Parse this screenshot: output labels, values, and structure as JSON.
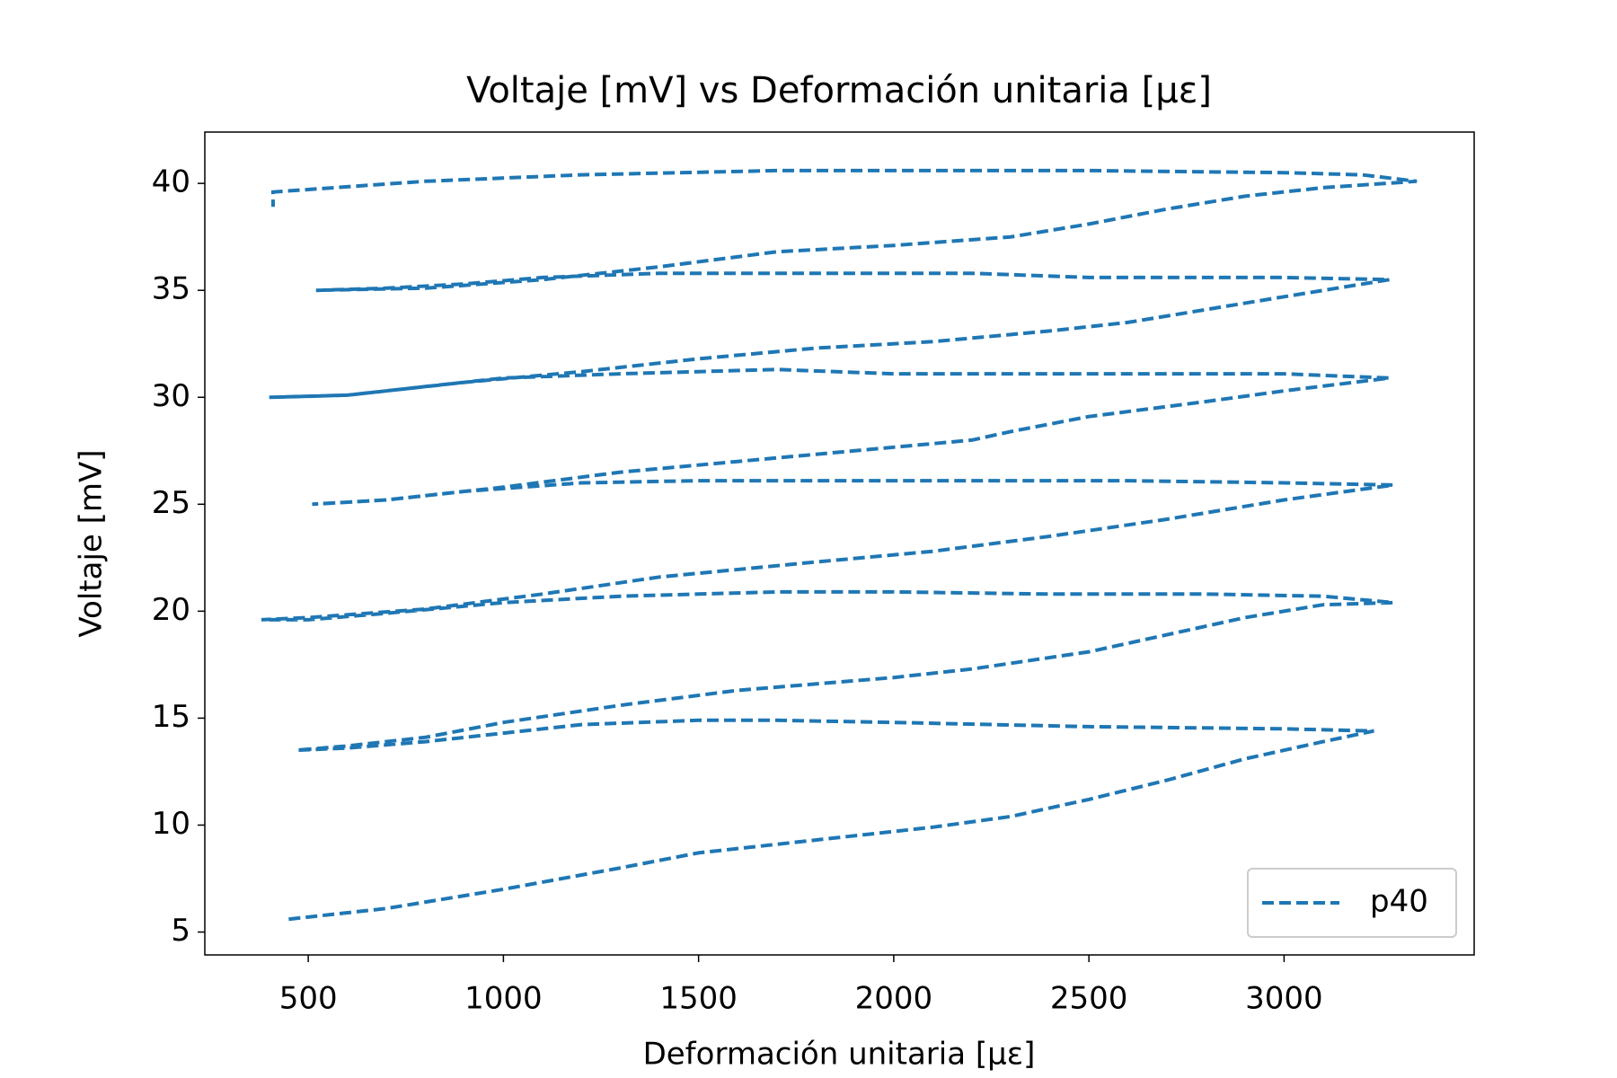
{
  "chart_data": {
    "type": "line",
    "title": "Voltaje [mV] vs Deformación unitaria [με]",
    "xlabel": "Deformación unitaria [με]",
    "ylabel": "Voltaje [mV]",
    "xlim": [
      235,
      3487
    ],
    "ylim": [
      3.93,
      42.4
    ],
    "xticks": [
      500,
      1000,
      1500,
      2000,
      2500,
      3000
    ],
    "yticks": [
      5,
      10,
      15,
      20,
      25,
      30,
      35,
      40
    ],
    "grid": false,
    "legend": "lower right",
    "dashed": true,
    "series": [
      {
        "name": "p40",
        "color": "#1f77b4",
        "x": [
          450,
          700,
          1000,
          1300,
          1500,
          1800,
          2100,
          2300,
          2500,
          2700,
          2900,
          3100,
          3230,
          3000,
          2500,
          2000,
          1700,
          1500,
          1200,
          1000,
          800,
          600,
          470,
          600,
          800,
          1000,
          1300,
          1600,
          2000,
          2200,
          2500,
          2700,
          2900,
          3100,
          3280,
          3100,
          2800,
          2400,
          2000,
          1700,
          1300,
          1000,
          700,
          500,
          380,
          500,
          800,
          1100,
          1400,
          1800,
          2100,
          2400,
          2700,
          3000,
          3280,
          3000,
          2600,
          2200,
          1800,
          1500,
          1200,
          900,
          700,
          510,
          700,
          1000,
          1300,
          1600,
          1900,
          2200,
          2300,
          2500,
          2800,
          3000,
          3270,
          3000,
          2500,
          2000,
          1700,
          1300,
          1000,
          800,
          600,
          400,
          600,
          900,
          1200,
          1500,
          1800,
          2100,
          2400,
          2600,
          2800,
          3000,
          3270,
          3000,
          2500,
          2200,
          1800,
          1400,
          1100,
          900,
          700,
          520,
          800,
          1100,
          1400,
          1700,
          2000,
          2300,
          2500,
          2700,
          2900,
          3100,
          3340,
          3200,
          3000,
          2500,
          2200,
          1700,
          1200,
          800,
          410,
          410
        ],
        "values": [
          5.6,
          6.1,
          7.0,
          8.0,
          8.7,
          9.3,
          9.9,
          10.4,
          11.2,
          12.1,
          13.1,
          13.9,
          14.4,
          14.5,
          14.6,
          14.8,
          14.9,
          14.9,
          14.7,
          14.3,
          13.9,
          13.6,
          13.5,
          13.7,
          14.1,
          14.8,
          15.6,
          16.3,
          16.9,
          17.3,
          18.1,
          18.9,
          19.7,
          20.3,
          20.4,
          20.7,
          20.8,
          20.8,
          20.9,
          20.9,
          20.7,
          20.4,
          19.9,
          19.6,
          19.6,
          19.7,
          20.1,
          20.8,
          21.6,
          22.3,
          22.8,
          23.5,
          24.3,
          25.2,
          25.9,
          26.0,
          26.1,
          26.1,
          26.1,
          26.1,
          26.0,
          25.6,
          25.2,
          25.0,
          25.2,
          25.8,
          26.5,
          27.0,
          27.5,
          28.0,
          28.4,
          29.1,
          29.8,
          30.3,
          30.9,
          31.1,
          31.1,
          31.1,
          31.3,
          31.1,
          30.9,
          30.5,
          30.1,
          30.0,
          30.1,
          30.7,
          31.2,
          31.8,
          32.3,
          32.6,
          33.1,
          33.5,
          34.1,
          34.7,
          35.5,
          35.6,
          35.6,
          35.8,
          35.8,
          35.8,
          35.6,
          35.3,
          35.1,
          35.0,
          35.1,
          35.5,
          36.1,
          36.8,
          37.1,
          37.5,
          38.1,
          38.8,
          39.4,
          39.8,
          40.1,
          40.4,
          40.5,
          40.6,
          40.6,
          40.6,
          40.4,
          40.1,
          39.6,
          38.9
        ]
      }
    ]
  }
}
